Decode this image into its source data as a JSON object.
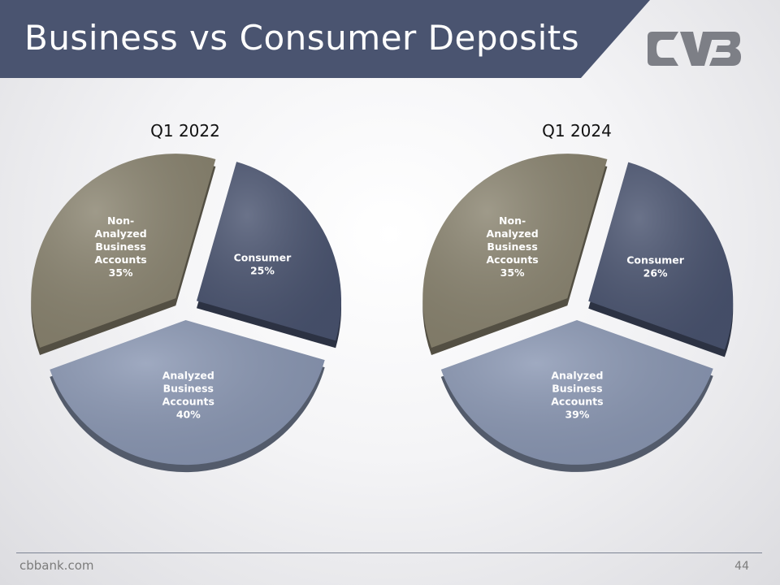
{
  "slide": {
    "title": "Business vs Consumer Deposits",
    "footer_url": "cbbank.com",
    "page_number": "44",
    "logo_text": "CVB"
  },
  "colors": {
    "header": "#4a5470",
    "consumer": "#4a5470",
    "analyzed": "#8a97b3",
    "non_analyzed": "#8a8470"
  },
  "chart_data": [
    {
      "type": "pie",
      "title": "Q1 2022",
      "slices": [
        {
          "key": "consumer",
          "label_lines": [
            "Consumer"
          ],
          "value_label": "25%",
          "value": 25
        },
        {
          "key": "analyzed",
          "label_lines": [
            "Analyzed",
            "Business",
            "Accounts"
          ],
          "value_label": "40%",
          "value": 40
        },
        {
          "key": "non_analyzed",
          "label_lines": [
            "Non-",
            "Analyzed",
            "Business",
            "Accounts"
          ],
          "value_label": "35%",
          "value": 35
        }
      ]
    },
    {
      "type": "pie",
      "title": "Q1 2024",
      "slices": [
        {
          "key": "consumer",
          "label_lines": [
            "Consumer"
          ],
          "value_label": "26%",
          "value": 26
        },
        {
          "key": "analyzed",
          "label_lines": [
            "Analyzed",
            "Business",
            "Accounts"
          ],
          "value_label": "39%",
          "value": 39
        },
        {
          "key": "non_analyzed",
          "label_lines": [
            "Non-",
            "Analyzed",
            "Business",
            "Accounts"
          ],
          "value_label": "35%",
          "value": 35
        }
      ]
    }
  ]
}
